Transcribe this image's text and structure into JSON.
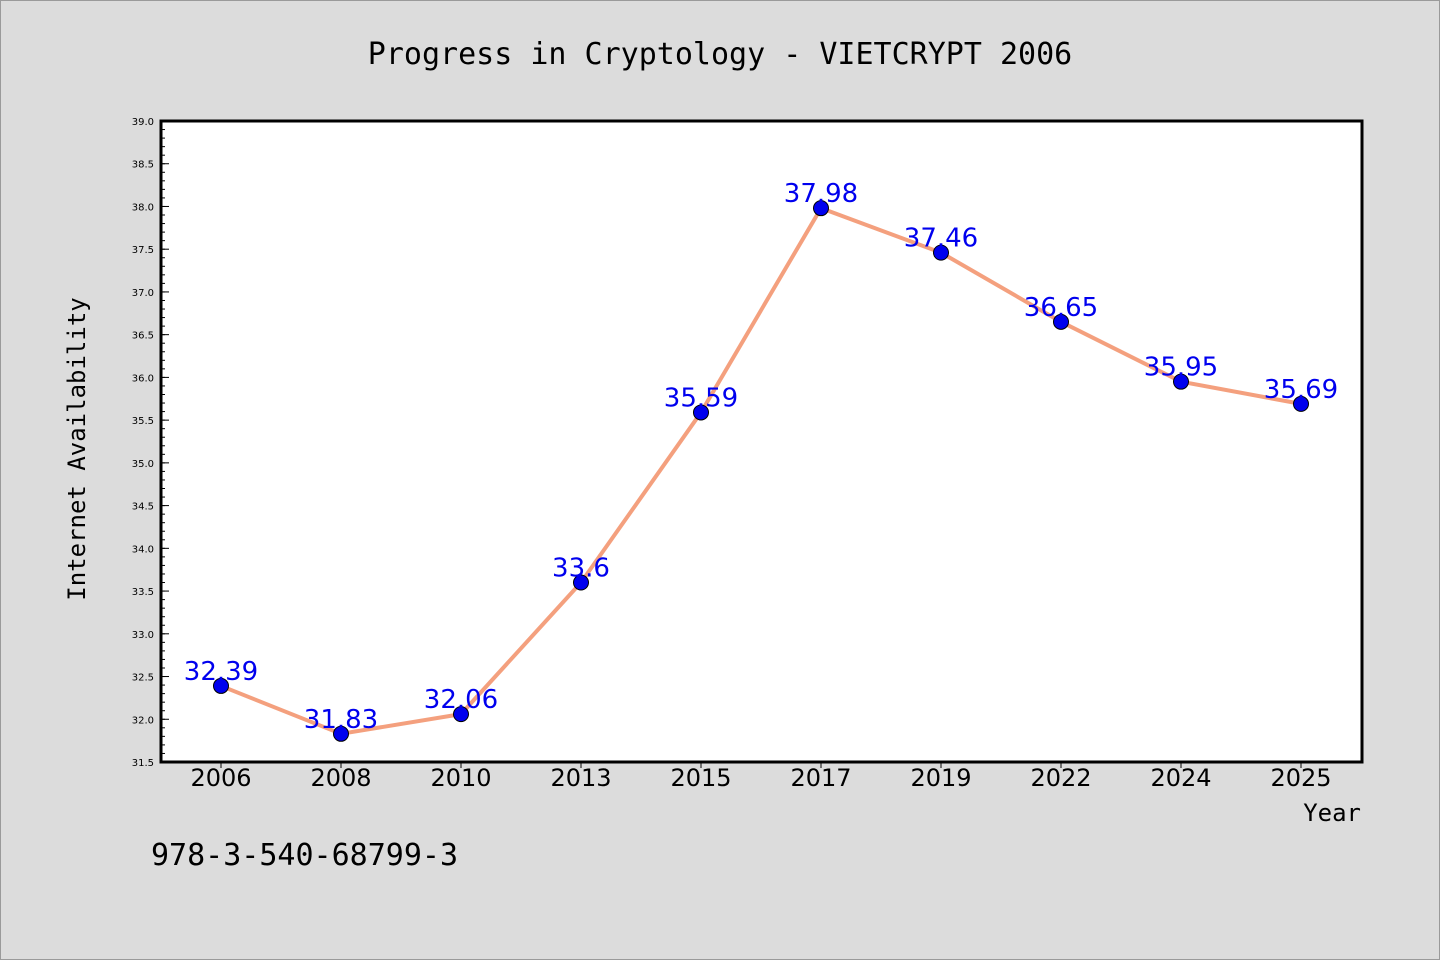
{
  "chart_data": {
    "type": "line",
    "title": "Progress in Cryptology - VIETCRYPT 2006",
    "xlabel": "Year",
    "ylabel": "Internet Availability",
    "categories": [
      "2006",
      "2008",
      "2010",
      "2013",
      "2015",
      "2017",
      "2019",
      "2022",
      "2024",
      "2025"
    ],
    "series": [
      {
        "values": [
          32.39,
          31.83,
          32.06,
          33.6,
          35.59,
          37.98,
          37.46,
          36.65,
          35.95,
          35.69
        ]
      }
    ],
    "data_labels": [
      "32.39",
      "31.83",
      "32.06",
      "33.6",
      "35.59",
      "37.98",
      "37.46",
      "36.65",
      "35.95",
      "35.69"
    ],
    "ylim": [
      31.5,
      39.0
    ],
    "yticks": [
      "31.5",
      "32.0",
      "32.5",
      "33.0",
      "33.5",
      "34.0",
      "34.5",
      "35.0",
      "35.5",
      "36.0",
      "36.5",
      "37.0",
      "37.5",
      "38.0",
      "38.5",
      "39.0"
    ],
    "grid": false,
    "colors": {
      "line": "#f4a07e",
      "marker": "#0000ee",
      "label": "#0000ee",
      "background": "#dcdcdc",
      "plot_background": "#ffffff"
    }
  },
  "footer_text": "978-3-540-68799-3"
}
